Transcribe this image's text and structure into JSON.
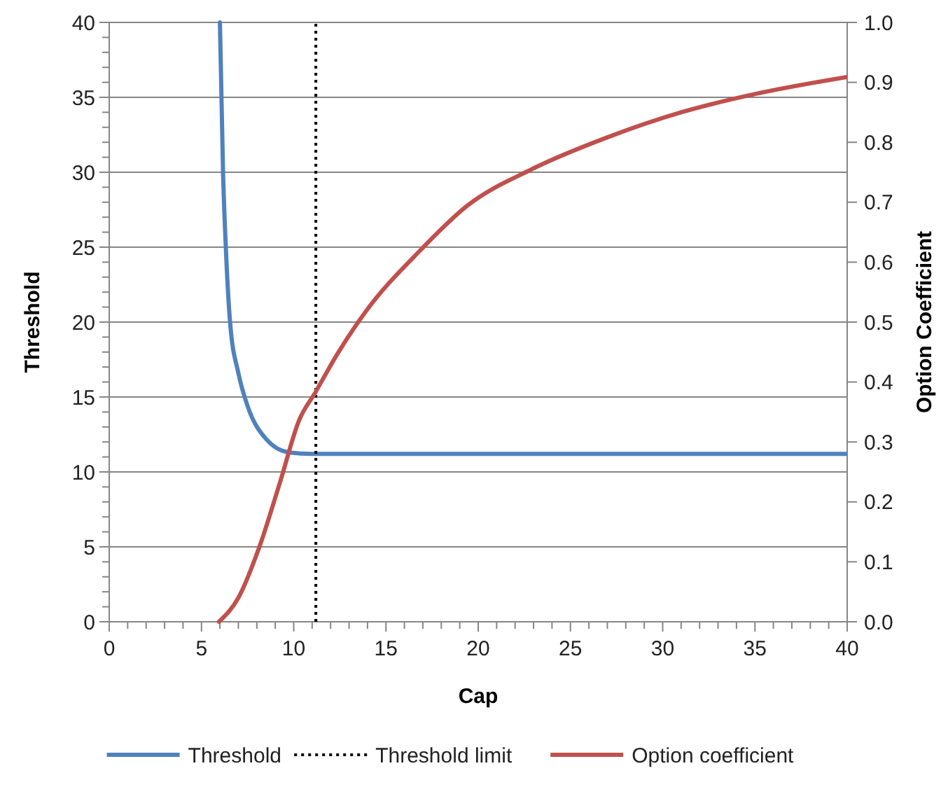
{
  "chart_data": {
    "type": "line",
    "xlabel": "Cap",
    "ylabel": "Threshold",
    "y2label": "Option Coefficient",
    "xlim": [
      0,
      40
    ],
    "ylim": [
      0,
      40
    ],
    "y2lim": [
      0,
      1
    ],
    "xticks": [
      0,
      {
        "value": 1,
        "label": null
      },
      {
        "value": 2,
        "label": null
      },
      {
        "value": 3,
        "label": null
      },
      {
        "value": 4,
        "label": null
      },
      5,
      {
        "value": 6,
        "label": null
      },
      {
        "value": 7,
        "label": null
      },
      {
        "value": 8,
        "label": null
      },
      {
        "value": 9,
        "label": null
      },
      10,
      {
        "value": 11,
        "label": null
      },
      {
        "value": 12,
        "label": null
      },
      {
        "value": 13,
        "label": null
      },
      {
        "value": 14,
        "label": null
      },
      15,
      {
        "value": 16,
        "label": null
      },
      {
        "value": 17,
        "label": null
      },
      {
        "value": 18,
        "label": null
      },
      {
        "value": 19,
        "label": null
      },
      20,
      {
        "value": 21,
        "label": null
      },
      {
        "value": 22,
        "label": null
      },
      {
        "value": 23,
        "label": null
      },
      {
        "value": 24,
        "label": null
      },
      25,
      {
        "value": 26,
        "label": null
      },
      {
        "value": 27,
        "label": null
      },
      {
        "value": 28,
        "label": null
      },
      {
        "value": 29,
        "label": null
      },
      30,
      {
        "value": 31,
        "label": null
      },
      {
        "value": 32,
        "label": null
      },
      {
        "value": 33,
        "label": null
      },
      {
        "value": 34,
        "label": null
      },
      35,
      {
        "value": 36,
        "label": null
      },
      {
        "value": 37,
        "label": null
      },
      {
        "value": 38,
        "label": null
      },
      {
        "value": 39,
        "label": null
      },
      40
    ],
    "yticks": [
      0,
      {
        "value": 1,
        "label": null
      },
      {
        "value": 2,
        "label": null
      },
      {
        "value": 3,
        "label": null
      },
      {
        "value": 4,
        "label": null
      },
      5,
      {
        "value": 6,
        "label": null
      },
      {
        "value": 7,
        "label": null
      },
      {
        "value": 8,
        "label": null
      },
      {
        "value": 9,
        "label": null
      },
      10,
      {
        "value": 11,
        "label": null
      },
      {
        "value": 12,
        "label": null
      },
      {
        "value": 13,
        "label": null
      },
      {
        "value": 14,
        "label": null
      },
      15,
      {
        "value": 16,
        "label": null
      },
      {
        "value": 17,
        "label": null
      },
      {
        "value": 18,
        "label": null
      },
      {
        "value": 19,
        "label": null
      },
      20,
      {
        "value": 21,
        "label": null
      },
      {
        "value": 22,
        "label": null
      },
      {
        "value": 23,
        "label": null
      },
      {
        "value": 24,
        "label": null
      },
      25,
      {
        "value": 26,
        "label": null
      },
      {
        "value": 27,
        "label": null
      },
      {
        "value": 28,
        "label": null
      },
      {
        "value": 29,
        "label": null
      },
      30,
      {
        "value": 31,
        "label": null
      },
      {
        "value": 32,
        "label": null
      },
      {
        "value": 33,
        "label": null
      },
      {
        "value": 34,
        "label": null
      },
      35,
      {
        "value": 36,
        "label": null
      },
      {
        "value": 37,
        "label": null
      },
      {
        "value": 38,
        "label": null
      },
      {
        "value": 39,
        "label": null
      },
      40
    ],
    "y2ticks": [
      {
        "value": 0,
        "label": "0.0"
      },
      0.1,
      0.2,
      0.3,
      0.4,
      0.5,
      0.6,
      0.7,
      0.8,
      0.9,
      {
        "value": 1,
        "label": "1.0"
      }
    ],
    "grid": "y",
    "legend": "bottom",
    "marker": "none",
    "series": [
      {
        "name": "Threshold",
        "color": "#4f81bd",
        "line_style": "solid",
        "x": [
          6.0,
          6.17,
          6.32,
          6.55,
          7.0,
          7.5,
          8.5,
          9.75,
          11.0,
          20,
          30,
          40
        ],
        "values": [
          40,
          30,
          25,
          20,
          16.6,
          14.4,
          12.2,
          11.3,
          11.2,
          11.2,
          11.2,
          11.2
        ]
      },
      {
        "name": "Threshold limit",
        "color": "#000000",
        "line_style": "dotted",
        "x": [
          11.2,
          11.2
        ],
        "values": [
          0,
          40
        ]
      },
      {
        "name": "Option coefficient",
        "color": "#c0504d",
        "line_style": "solid",
        "axis": "y2",
        "x": [
          5.95,
          7.0,
          8.14,
          9.28,
          10.29,
          11.18,
          12.33,
          13.84,
          16.87,
          19.4,
          22.9,
          26.98,
          31.0,
          35.07,
          40
        ],
        "values": [
          0,
          0.04,
          0.125,
          0.235,
          0.336,
          0.383,
          0.445,
          0.515,
          0.62,
          0.694,
          0.755,
          0.808,
          0.85,
          0.881,
          0.909
        ]
      }
    ]
  }
}
